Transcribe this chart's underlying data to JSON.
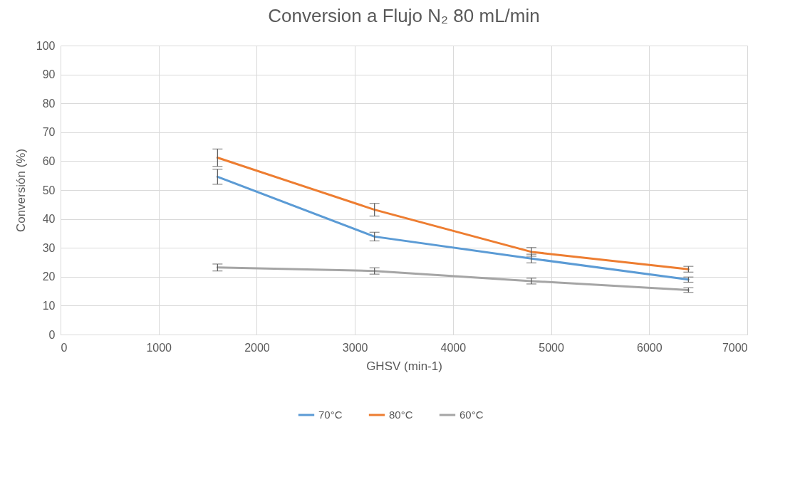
{
  "chart_data": {
    "type": "line",
    "title": "Conversion a Flujo N₂ 80  mL/min",
    "xlabel": "GHSV (min-1)",
    "ylabel": "Conversión (%)",
    "x": [
      1600,
      3200,
      4800,
      6400
    ],
    "series": [
      {
        "name": "70°C",
        "color": "#5b9bd5",
        "values": [
          54.6,
          33.9,
          26.3,
          19.0
        ],
        "errors": [
          2.6,
          1.5,
          1.5,
          0.9
        ]
      },
      {
        "name": "80°C",
        "color": "#ed7d31",
        "values": [
          61.2,
          43.2,
          28.6,
          22.6
        ],
        "errors": [
          3.0,
          2.2,
          1.5,
          1.0
        ]
      },
      {
        "name": "60°C",
        "color": "#a5a5a5",
        "values": [
          23.2,
          22.0,
          18.5,
          15.4
        ],
        "errors": [
          1.2,
          1.1,
          1.0,
          0.8
        ]
      }
    ],
    "xlim": [
      0,
      7000
    ],
    "xticks": [
      0,
      1000,
      2000,
      3000,
      4000,
      5000,
      6000,
      7000
    ],
    "ylim": [
      0,
      100
    ],
    "yticks": [
      0,
      10,
      20,
      30,
      40,
      50,
      60,
      70,
      80,
      90,
      100
    ],
    "grid": true,
    "legend": "bottom",
    "marker": "none",
    "line_style": "solid"
  }
}
